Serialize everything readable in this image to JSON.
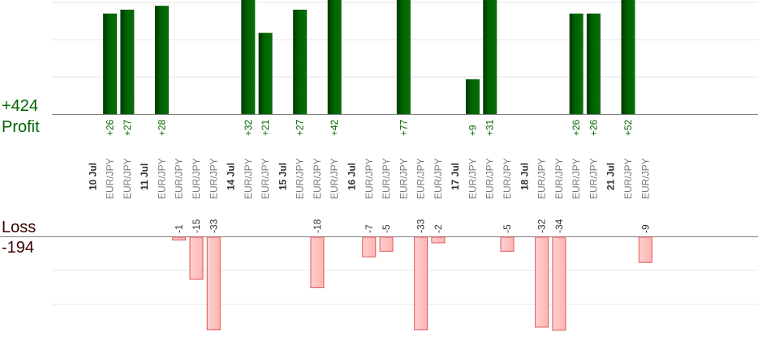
{
  "summary": {
    "profit_value": "+424",
    "profit_label": "Profit",
    "loss_label": "Loss",
    "loss_value": "-194"
  },
  "colors": {
    "profit_bar": "#006400",
    "loss_bar": "#ffb3b3",
    "loss_border": "#e05a5a"
  },
  "chart_data": {
    "type": "bar",
    "categories": [
      {
        "kind": "day",
        "label": "10 Jul"
      },
      {
        "kind": "trade",
        "pair": "EUR/JPY",
        "value": 26
      },
      {
        "kind": "trade",
        "pair": "EUR/JPY",
        "value": 27
      },
      {
        "kind": "day",
        "label": "11 Jul"
      },
      {
        "kind": "trade",
        "pair": "EUR/JPY",
        "value": 28
      },
      {
        "kind": "trade",
        "pair": "EUR/JPY",
        "value": -1
      },
      {
        "kind": "trade",
        "pair": "EUR/JPY",
        "value": -15
      },
      {
        "kind": "trade",
        "pair": "EUR/JPY",
        "value": -33
      },
      {
        "kind": "day",
        "label": "14 Jul"
      },
      {
        "kind": "trade",
        "pair": "EUR/JPY",
        "value": 32
      },
      {
        "kind": "trade",
        "pair": "EUR/JPY",
        "value": 21
      },
      {
        "kind": "day",
        "label": "15 Jul"
      },
      {
        "kind": "trade",
        "pair": "EUR/JPY",
        "value": 27
      },
      {
        "kind": "trade",
        "pair": "EUR/JPY",
        "value": -18
      },
      {
        "kind": "trade",
        "pair": "EUR/JPY",
        "value": 42
      },
      {
        "kind": "day",
        "label": "16 Jul"
      },
      {
        "kind": "trade",
        "pair": "EUR/JPY",
        "value": -7
      },
      {
        "kind": "trade",
        "pair": "EUR/JPY",
        "value": -5
      },
      {
        "kind": "trade",
        "pair": "EUR/JPY",
        "value": 77
      },
      {
        "kind": "trade",
        "pair": "EUR/JPY",
        "value": -33
      },
      {
        "kind": "trade",
        "pair": "EUR/JPY",
        "value": -2
      },
      {
        "kind": "day",
        "label": "17 Jul"
      },
      {
        "kind": "trade",
        "pair": "EUR/JPY",
        "value": 9
      },
      {
        "kind": "trade",
        "pair": "EUR/JPY",
        "value": 31
      },
      {
        "kind": "trade",
        "pair": "EUR/JPY",
        "value": -5
      },
      {
        "kind": "day",
        "label": "18 Jul"
      },
      {
        "kind": "trade",
        "pair": "EUR/JPY",
        "value": -32
      },
      {
        "kind": "trade",
        "pair": "EUR/JPY",
        "value": -34
      },
      {
        "kind": "trade",
        "pair": "EUR/JPY",
        "value": 26
      },
      {
        "kind": "trade",
        "pair": "EUR/JPY",
        "value": 26
      },
      {
        "kind": "day",
        "label": "21 Jul"
      },
      {
        "kind": "trade",
        "pair": "EUR/JPY",
        "value": 52
      },
      {
        "kind": "trade",
        "pair": "EUR/JPY",
        "value": -9
      }
    ],
    "profit_ylim": [
      0,
      30
    ],
    "loss_ylim": [
      -24,
      0
    ],
    "grid": true
  }
}
